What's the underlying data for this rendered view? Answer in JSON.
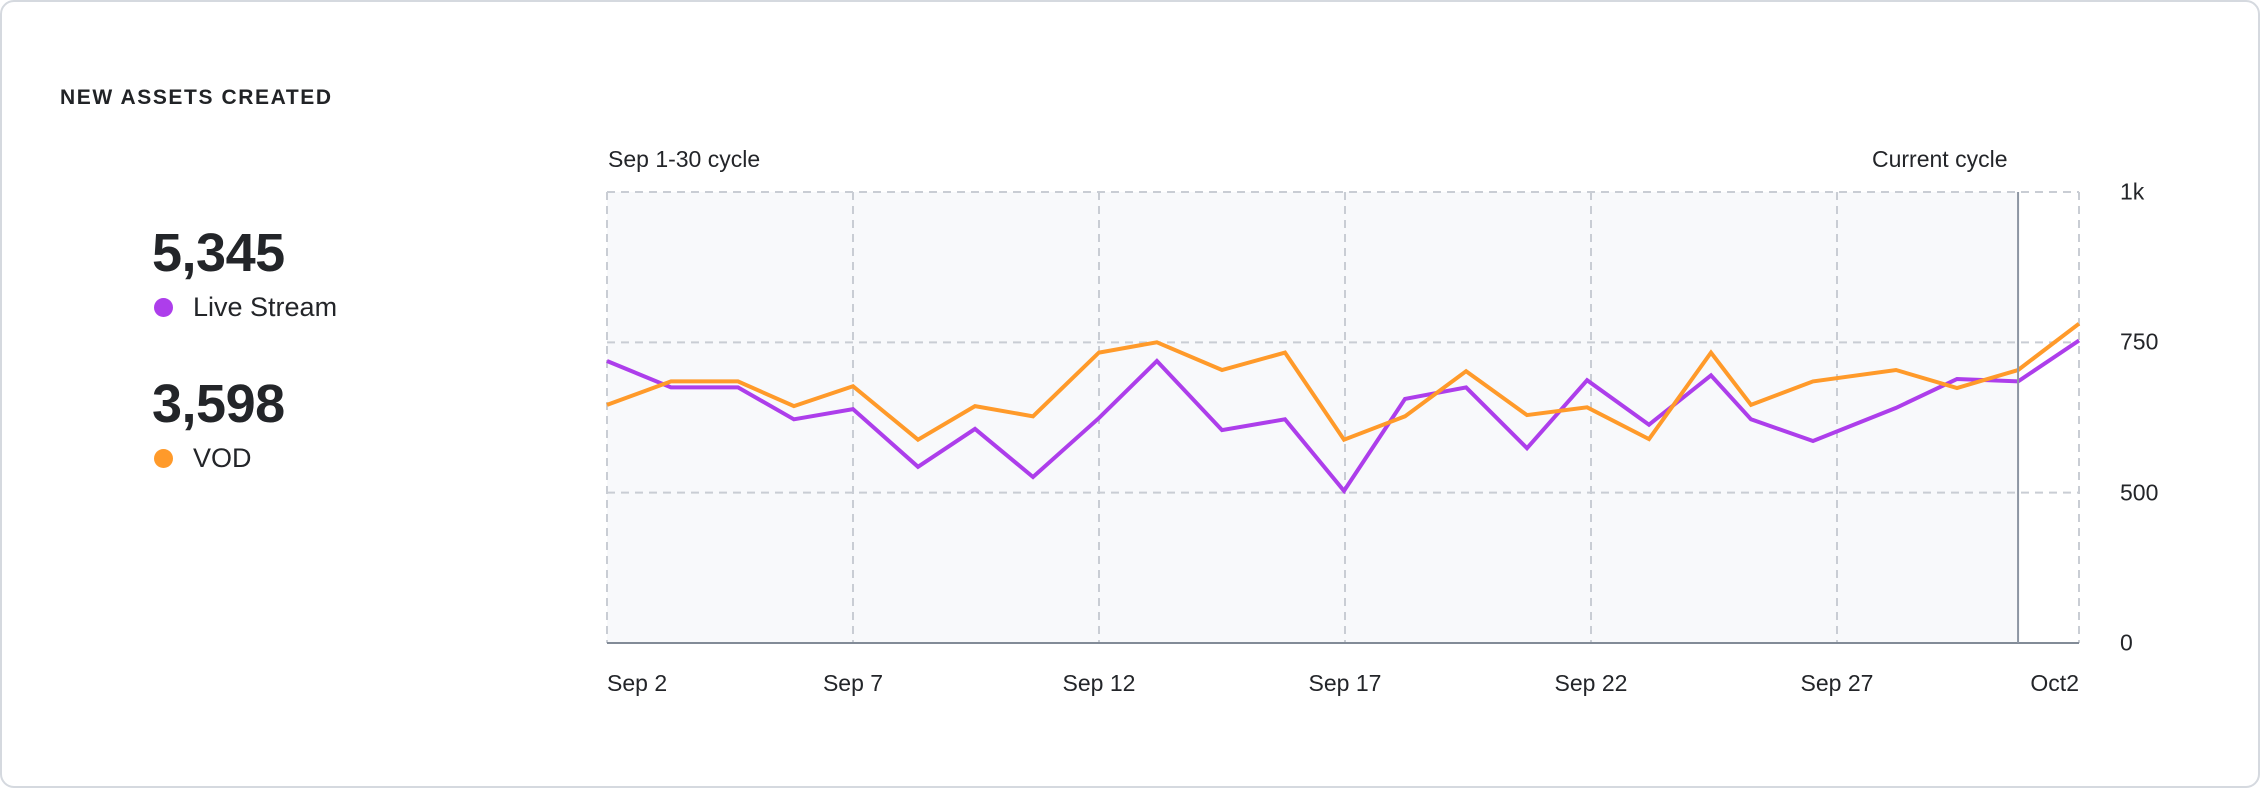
{
  "card": {
    "title": "NEW ASSETS CREATED"
  },
  "stats": [
    {
      "value": "5,345",
      "label": "Live Stream",
      "color": "#AD3EEB"
    },
    {
      "value": "3,598",
      "label": "VOD",
      "color": "#FF9A2A"
    }
  ],
  "chart": {
    "previous_cycle_label": "Sep 1-30 cycle",
    "current_cycle_label": "Current cycle"
  },
  "chart_data": {
    "type": "line",
    "title": "NEW ASSETS CREATED",
    "xlabel": "",
    "ylabel": "",
    "x_tick_labels": [
      "Sep 2",
      "Sep 7",
      "Sep 12",
      "Sep 17",
      "Sep 22",
      "Sep 27",
      "Oct2"
    ],
    "y_tick_labels": [
      "0",
      "500",
      "750",
      "1k"
    ],
    "y_tick_values": [
      0,
      500,
      750,
      1000
    ],
    "ylim": [
      0,
      1000
    ],
    "grid": true,
    "legend_position": "left",
    "annotations": [
      "Sep 1-30 cycle",
      "Current cycle"
    ],
    "x_positions": [
      0,
      0.0435,
      0.089,
      0.127,
      0.1671,
      0.2113,
      0.25,
      0.2894,
      0.3342,
      0.3736,
      0.4178,
      0.4606,
      0.5007,
      0.5421,
      0.5836,
      0.625,
      0.6658,
      0.7079,
      0.75,
      0.7772,
      0.8193,
      0.8757,
      0.9171,
      0.9586,
      1.0
    ],
    "current_cycle_start": 0.9586,
    "series": [
      {
        "name": "Live Stream",
        "color": "#AD3EEB",
        "values": [
          719,
          675,
          675,
          622,
          639,
          543,
          606,
          526,
          624,
          719,
          604,
          622,
          503,
          656,
          675,
          574,
          687,
          613,
          695,
          622,
          586,
          641,
          689,
          685,
          753
        ]
      },
      {
        "name": "VOD",
        "color": "#FF9A2A",
        "values": [
          646,
          685,
          685,
          644,
          677,
          588,
          644,
          627,
          733,
          750,
          704,
          733,
          588,
          627,
          702,
          629,
          642,
          589,
          733,
          646,
          685,
          704,
          674,
          704,
          781
        ]
      }
    ]
  }
}
